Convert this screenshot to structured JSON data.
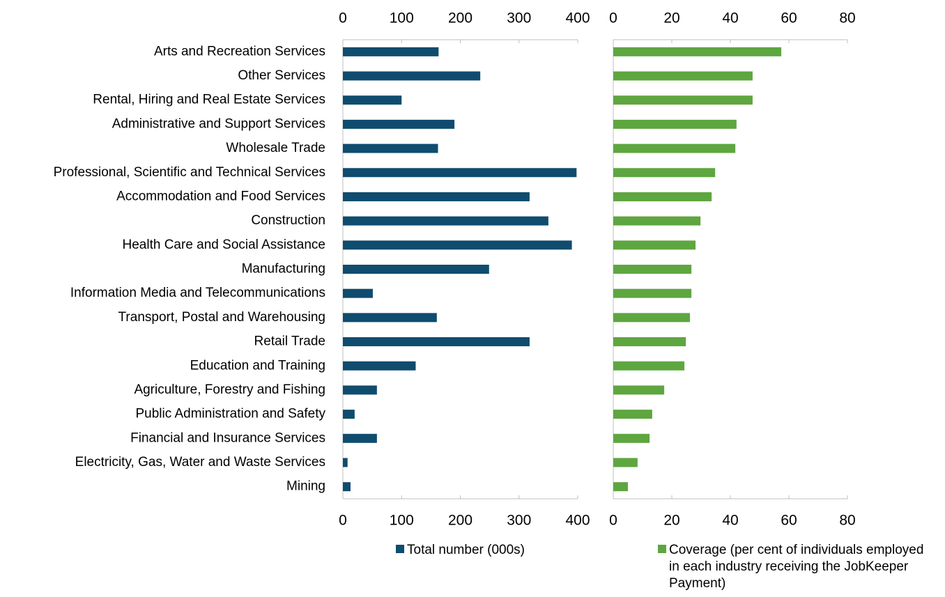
{
  "chart_data": {
    "type": "bar",
    "orientation": "horizontal",
    "categories": [
      "Arts and Recreation Services",
      "Other Services",
      "Rental, Hiring and Real Estate Services",
      "Administrative and Support Services",
      "Wholesale Trade",
      "Professional, Scientific and Technical Services",
      "Accommodation and Food Services",
      "Construction",
      "Health Care and Social Assistance",
      "Manufacturing",
      "Information Media and Telecommunications",
      "Transport, Postal and Warehousing",
      "Retail Trade",
      "Education and Training",
      "Agriculture, Forestry and Fishing",
      "Public Administration and Safety",
      "Financial and Insurance Services",
      "Electricity, Gas, Water and Waste Services",
      "Mining"
    ],
    "series": [
      {
        "name": "Total number (000s)",
        "color": "#0f4c6e",
        "axis": "x",
        "values": [
          163,
          234,
          100,
          190,
          162,
          398,
          318,
          350,
          390,
          249,
          51,
          160,
          318,
          124,
          58,
          20,
          58,
          8,
          13
        ]
      },
      {
        "name": "Coverage (per cent of individuals employed in each industry receiving the JobKeeper Payment)",
        "color": "#5ea640",
        "axis": "x2",
        "values": [
          57.4,
          47.6,
          47.6,
          42.1,
          41.7,
          34.8,
          33.6,
          29.8,
          28.1,
          26.7,
          26.7,
          26.2,
          24.8,
          24.3,
          17.4,
          13.3,
          12.4,
          8.3,
          5
        ]
      }
    ],
    "xlim": [
      0,
      400
    ],
    "xticks": [
      0,
      100,
      200,
      300,
      400
    ],
    "x2lim": [
      0,
      80
    ],
    "x2ticks": [
      0,
      20,
      40,
      60,
      80
    ]
  }
}
